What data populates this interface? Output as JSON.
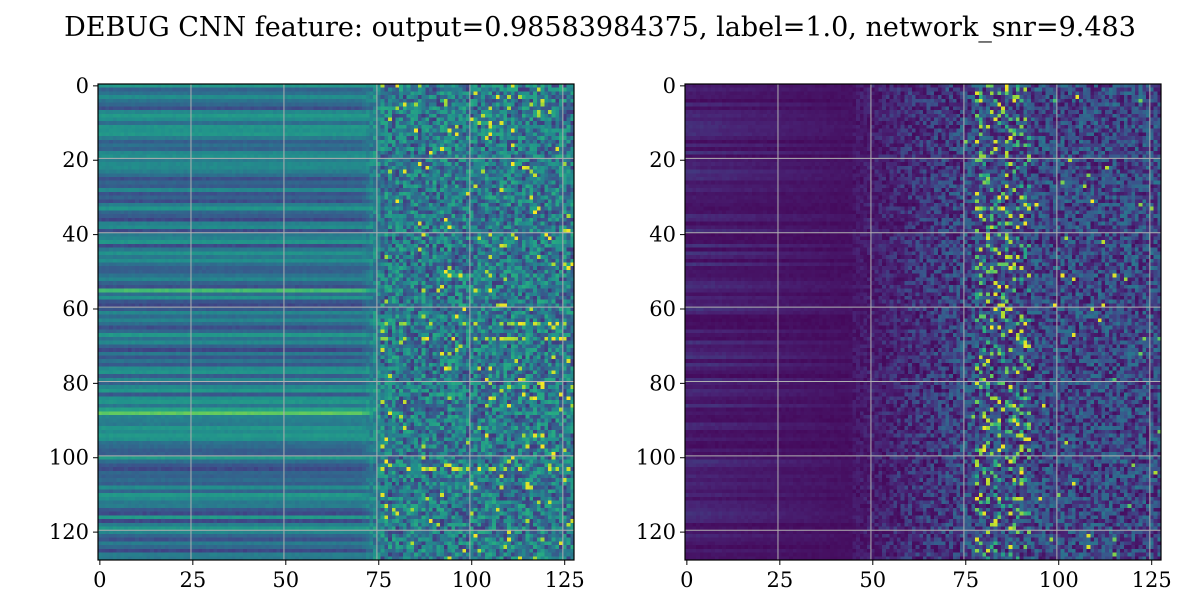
{
  "figure": {
    "title": "DEBUG CNN feature: output=0.98583984375, label=1.0, network_snr=9.483"
  },
  "chart_data": [
    {
      "type": "heatmap",
      "colormap": "viridis",
      "rows": 128,
      "cols": 128,
      "xlim": [
        0,
        128
      ],
      "ylim": [
        128,
        0
      ],
      "x_ticks": [
        0,
        25,
        50,
        75,
        100,
        125
      ],
      "y_ticks": [
        0,
        20,
        40,
        60,
        80,
        100,
        120
      ],
      "grid": true,
      "grid_color": "#b0b0b0",
      "description_of_values": {
        "low_value_color": "#440154",
        "high_value_color": "#fde725",
        "left_columns": "smooth horizontal stripes, mid values",
        "right_columns": "noisy, from about column 75"
      }
    },
    {
      "type": "heatmap",
      "colormap": "viridis",
      "rows": 128,
      "cols": 128,
      "xlim": [
        0,
        128
      ],
      "ylim": [
        128,
        0
      ],
      "x_ticks": [
        0,
        25,
        50,
        75,
        100,
        125
      ],
      "y_ticks": [
        0,
        20,
        40,
        60,
        80,
        100,
        120
      ],
      "grid": true,
      "grid_color": "#b0b0b0",
      "description_of_values": {
        "low_value_color": "#440154",
        "high_value_color": "#fde725",
        "left_columns": "dark, low values",
        "right_columns": "noisy with bright spots near columns 80-90"
      }
    }
  ]
}
